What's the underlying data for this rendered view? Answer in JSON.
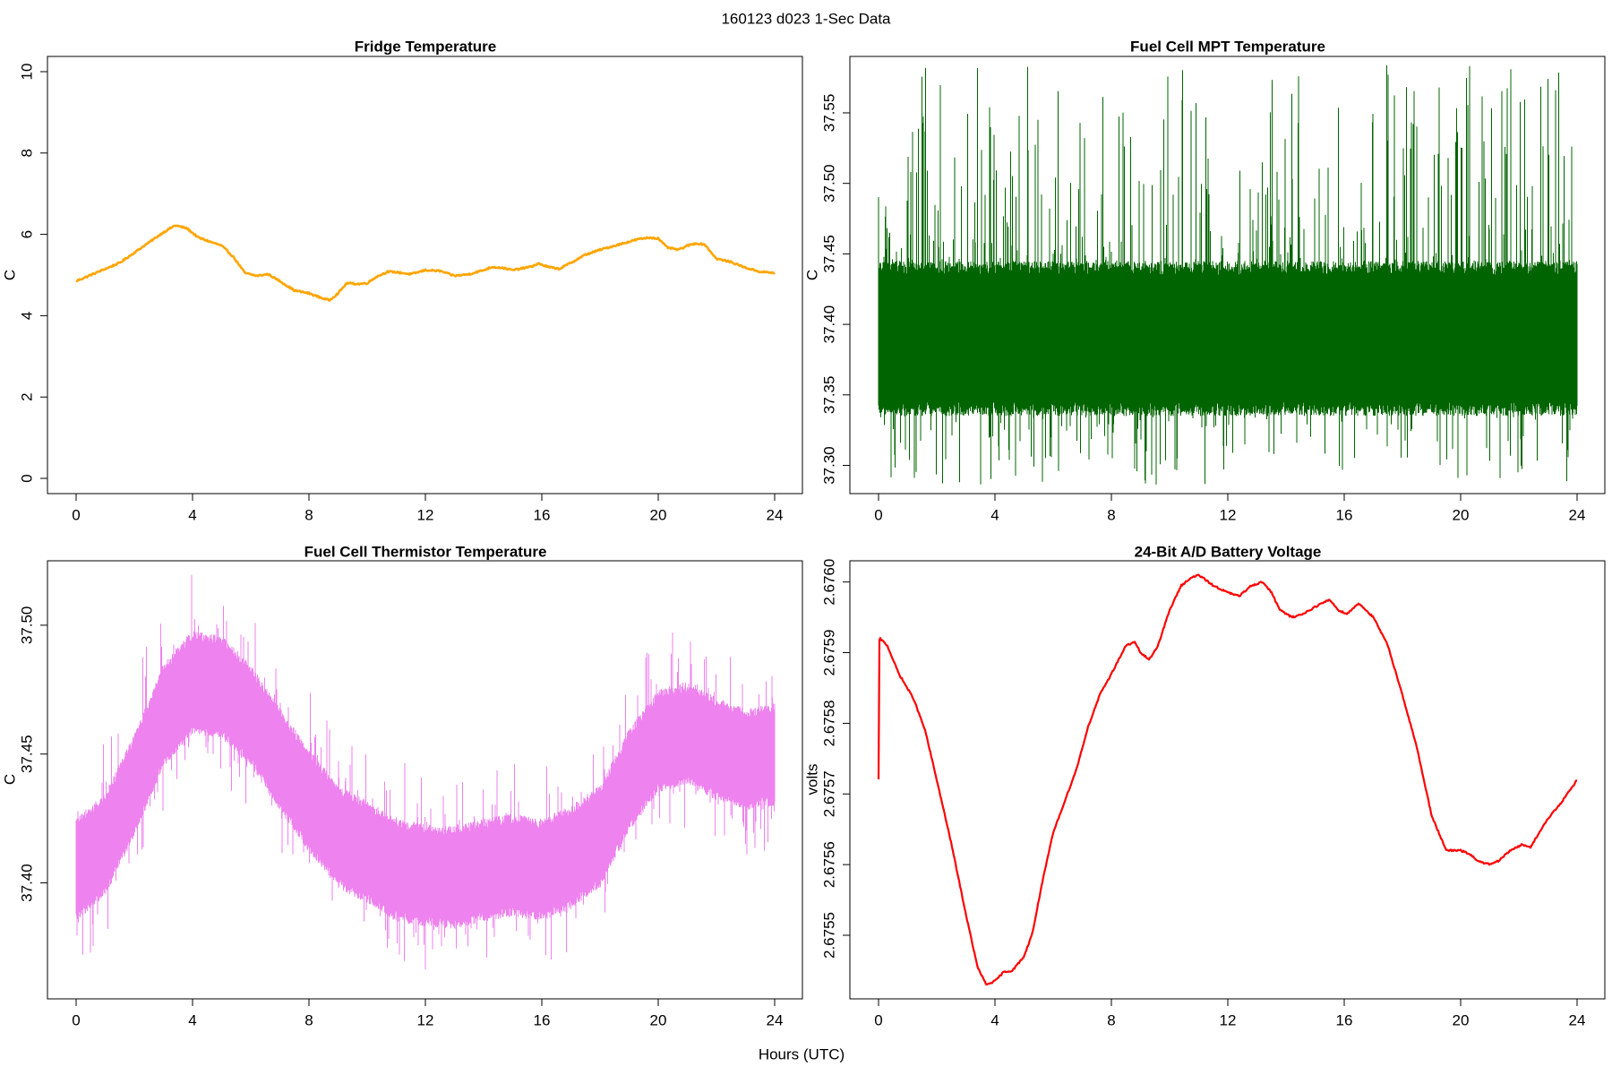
{
  "suptitle": "160123   d023   1-Sec Data",
  "xlabel": "Hours (UTC)",
  "chart_data": [
    {
      "type": "line",
      "title": "Fridge Temperature",
      "ylabel": "C",
      "color": "#FFA500",
      "xlim": [
        0,
        24
      ],
      "ylim": [
        0,
        10
      ],
      "xticks": [
        0,
        4,
        8,
        12,
        16,
        20,
        24
      ],
      "yticks": [
        0,
        2,
        4,
        6,
        8,
        10
      ],
      "ytick_labels": [
        "0",
        "2",
        "4",
        "6",
        "8",
        "10"
      ],
      "noise": 0.02,
      "x": [
        0,
        0.5,
        1,
        1.5,
        2,
        2.5,
        3,
        3.4,
        3.8,
        4.2,
        4.6,
        5,
        5.4,
        5.8,
        6.2,
        6.6,
        7,
        7.5,
        8,
        8.5,
        8.7,
        9,
        9.3,
        9.7,
        10,
        10.3,
        10.7,
        11,
        11.5,
        12,
        12.5,
        13,
        13.5,
        14,
        14.3,
        14.7,
        15,
        15.3,
        15.6,
        15.9,
        16.2,
        16.6,
        17,
        17.5,
        18,
        18.5,
        19,
        19.3,
        19.7,
        20,
        20.3,
        20.7,
        21,
        21.3,
        21.6,
        22,
        22.5,
        23,
        23.5,
        24
      ],
      "y": [
        4.85,
        5.0,
        5.15,
        5.3,
        5.55,
        5.8,
        6.05,
        6.22,
        6.15,
        5.92,
        5.82,
        5.72,
        5.45,
        5.05,
        4.98,
        5.02,
        4.85,
        4.62,
        4.55,
        4.42,
        4.38,
        4.55,
        4.8,
        4.78,
        4.8,
        4.95,
        5.08,
        5.07,
        5.02,
        5.12,
        5.1,
        4.98,
        5.02,
        5.12,
        5.2,
        5.17,
        5.12,
        5.16,
        5.2,
        5.28,
        5.2,
        5.15,
        5.3,
        5.5,
        5.62,
        5.72,
        5.82,
        5.88,
        5.92,
        5.9,
        5.68,
        5.62,
        5.72,
        5.78,
        5.75,
        5.4,
        5.32,
        5.18,
        5.08,
        5.05
      ]
    },
    {
      "type": "line",
      "title": "Fuel Cell MPT Temperature",
      "ylabel": "C",
      "color": "#006400",
      "xlim": [
        0,
        24
      ],
      "ylim": [
        37.28,
        37.59
      ],
      "xticks": [
        0,
        4,
        8,
        12,
        16,
        20,
        24
      ],
      "yticks": [
        37.3,
        37.35,
        37.4,
        37.45,
        37.5,
        37.55
      ],
      "ytick_labels": [
        "37.30",
        "37.35",
        "37.40",
        "37.45",
        "37.50",
        "37.55"
      ],
      "center": 37.395,
      "band_low": 37.34,
      "band_high": 37.44,
      "spike_top": 37.585,
      "dip_bottom": 37.285
    },
    {
      "type": "line",
      "title": "Fuel Cell Thermistor Temperature",
      "ylabel": "C",
      "color": "#EE82EE",
      "xlim": [
        0,
        24
      ],
      "ylim": [
        37.355,
        37.525
      ],
      "xticks": [
        0,
        4,
        8,
        12,
        16,
        20,
        24
      ],
      "yticks": [
        37.4,
        37.45,
        37.5
      ],
      "ytick_labels": [
        "37.40",
        "37.45",
        "37.50"
      ],
      "x": [
        0,
        1,
        2,
        3,
        4,
        5,
        6,
        7,
        8,
        9,
        10,
        11,
        12,
        13,
        14,
        15,
        16,
        17,
        18,
        19,
        20,
        21,
        22,
        23,
        24
      ],
      "y": [
        37.405,
        37.415,
        37.438,
        37.465,
        37.478,
        37.476,
        37.465,
        37.448,
        37.432,
        37.418,
        37.412,
        37.405,
        37.403,
        37.402,
        37.405,
        37.407,
        37.405,
        37.41,
        37.418,
        37.44,
        37.455,
        37.458,
        37.452,
        37.448,
        37.45
      ],
      "band_halfwidth": 0.018,
      "spike_top": 37.52,
      "dip_bottom": 37.36
    },
    {
      "type": "line",
      "title": "24-Bit A/D Battery Voltage",
      "ylabel": "volts",
      "color": "#FF0000",
      "xlim": [
        0,
        24
      ],
      "ylim": [
        2.67541,
        2.67603
      ],
      "xticks": [
        0,
        4,
        8,
        12,
        16,
        20,
        24
      ],
      "yticks": [
        2.6755,
        2.6756,
        2.6757,
        2.6758,
        2.6759,
        2.676
      ],
      "ytick_labels": [
        "2.6755",
        "2.6756",
        "2.6757",
        "2.6758",
        "2.6759",
        "2.6760"
      ],
      "x": [
        0,
        0.01,
        0.05,
        0.3,
        0.7,
        1.2,
        1.6,
        2,
        2.5,
        3,
        3.4,
        3.7,
        4,
        4.3,
        4.6,
        5,
        5.3,
        5.6,
        6,
        6.4,
        6.8,
        7.2,
        7.6,
        8,
        8.5,
        8.8,
        9,
        9.3,
        9.6,
        10,
        10.4,
        10.7,
        11,
        11.5,
        12,
        12.4,
        12.8,
        13.2,
        13.5,
        13.8,
        14.2,
        14.6,
        15,
        15.5,
        15.8,
        16.1,
        16.5,
        17,
        17.5,
        18,
        18.5,
        19,
        19.5,
        20,
        20.3,
        20.6,
        21,
        21.3,
        21.7,
        22.1,
        22.4,
        22.7,
        23,
        23.5,
        24
      ],
      "y": [
        2.67572,
        2.675915,
        2.67592,
        2.67591,
        2.67587,
        2.675835,
        2.67579,
        2.67572,
        2.67563,
        2.67553,
        2.675455,
        2.67543,
        2.675435,
        2.675448,
        2.67545,
        2.67547,
        2.675505,
        2.67557,
        2.675645,
        2.67569,
        2.675735,
        2.675795,
        2.67584,
        2.67587,
        2.67591,
        2.675915,
        2.6759,
        2.67589,
        2.67591,
        2.67596,
        2.675995,
        2.676005,
        2.67601,
        2.675995,
        2.675985,
        2.67598,
        2.675995,
        2.676,
        2.675985,
        2.67596,
        2.67595,
        2.675955,
        2.675965,
        2.675975,
        2.67596,
        2.675955,
        2.67597,
        2.67595,
        2.67591,
        2.67584,
        2.675765,
        2.67567,
        2.67562,
        2.67562,
        2.675615,
        2.675605,
        2.6756,
        2.675605,
        2.67562,
        2.675628,
        2.675625,
        2.675645,
        2.675665,
        2.67569,
        2.67572
      ],
      "noise": 1.2e-06
    }
  ]
}
